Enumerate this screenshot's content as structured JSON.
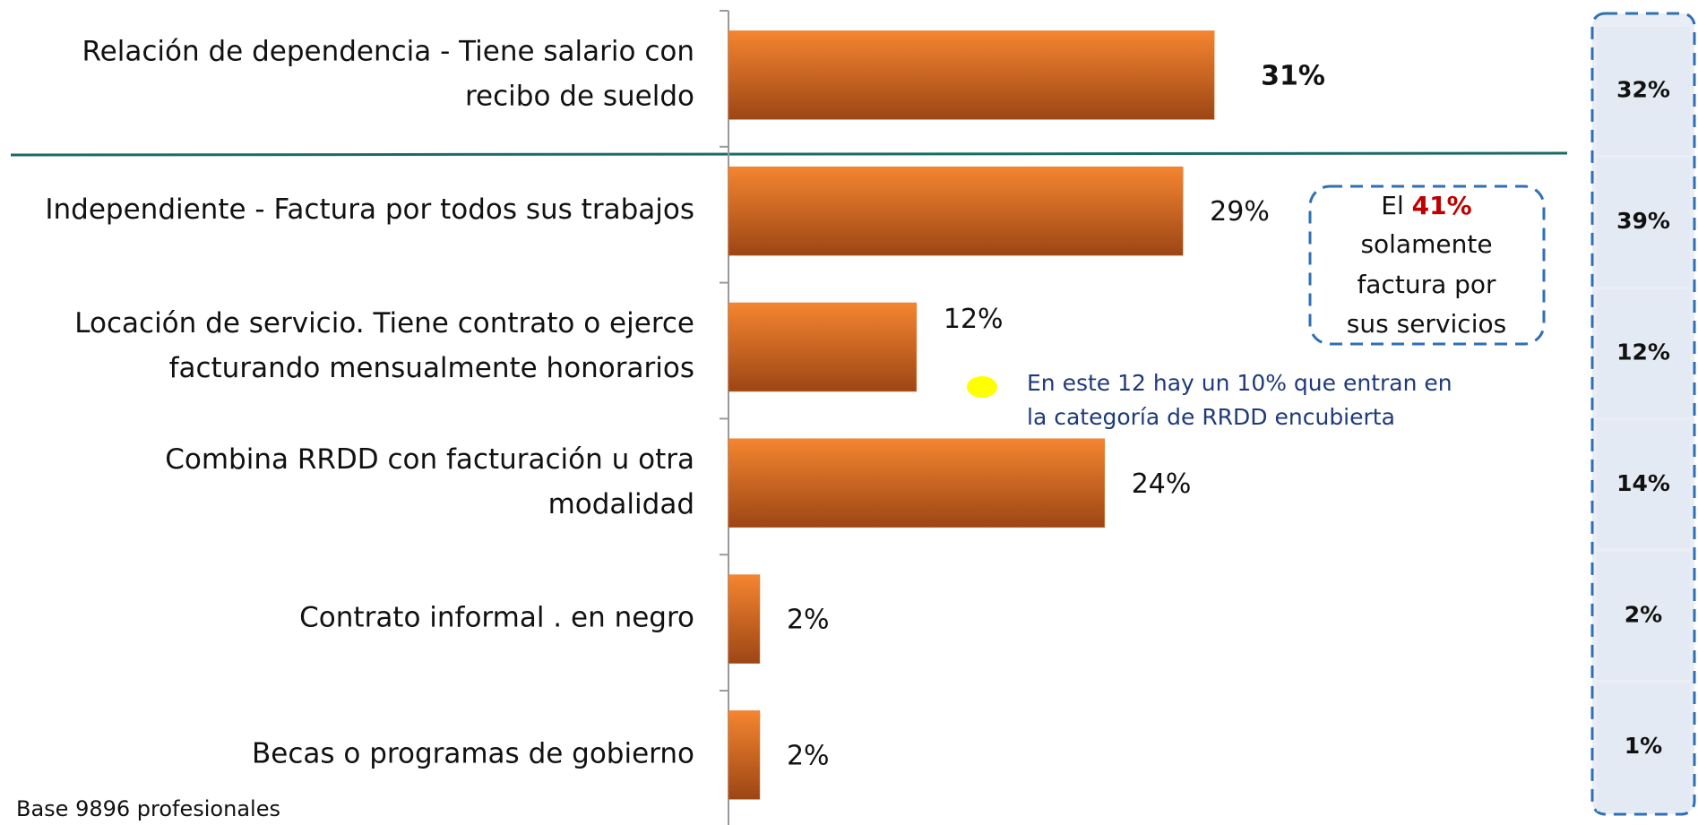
{
  "chart_data": {
    "type": "barh",
    "categories": [
      [
        "Relación de dependencia - Tiene salario con",
        "recibo de sueldo"
      ],
      [
        "Independiente - Factura por todos sus trabajos"
      ],
      [
        "Locación de servicio. Tiene contrato o ejerce",
        "facturando mensualmente honorarios"
      ],
      [
        "Combina RRDD con facturación u otra",
        "modalidad"
      ],
      [
        "Contrato informal . en negro"
      ],
      [
        "Becas o programas de gobierno"
      ]
    ],
    "values": [
      31,
      29,
      12,
      24,
      2,
      2
    ],
    "value_labels": [
      "31%",
      "29%",
      "12%",
      "24%",
      "2%",
      "2%"
    ],
    "color": "#e8762a",
    "xlim": [
      0,
      45
    ],
    "side_values": [
      32,
      39,
      12,
      14,
      2,
      1
    ],
    "side_value_labels": [
      "32%",
      "39%",
      "12%",
      "14%",
      "2%",
      "1%"
    ],
    "callout": {
      "prefix": "El",
      "highlight": "41%",
      "lines": [
        "solamente",
        "factura por",
        "sus servicios"
      ]
    },
    "note": [
      "En este 12 hay un 10% que entran en",
      "la categoría de RRDD encubierta"
    ],
    "footer": "Base 9896 profesionales"
  }
}
